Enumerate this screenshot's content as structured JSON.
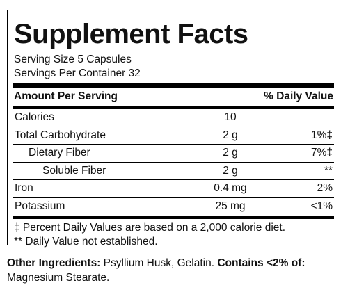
{
  "label": {
    "title": "Supplement Facts",
    "serving_size": "Serving Size 5 Capsules",
    "servings_per_container": "Servings Per Container 32",
    "header_left": "Amount Per Serving",
    "header_right": "% Daily Value",
    "rows": [
      {
        "name": "Calories",
        "amount": "10",
        "dv": ""
      },
      {
        "name": "Total Carbohydrate",
        "amount": "2 g",
        "dv": "1%‡"
      },
      {
        "name": "Dietary Fiber",
        "amount": "2 g",
        "dv": "7%‡"
      },
      {
        "name": "Soluble Fiber",
        "amount": "2 g",
        "dv": "**"
      },
      {
        "name": "Iron",
        "amount": "0.4 mg",
        "dv": "2%"
      },
      {
        "name": "Potassium",
        "amount": "25 mg",
        "dv": "<1%"
      }
    ],
    "footnote_1": "‡ Percent Daily Values are based on a 2,000 calorie diet.",
    "footnote_2": "** Daily Value not established."
  },
  "ingredients": {
    "label": "Other Ingredients:",
    "text": " Psyllium Husk, Gelatin. ",
    "contains_label": "Contains <2% of:",
    "contains_text": " Magnesium Stearate."
  }
}
